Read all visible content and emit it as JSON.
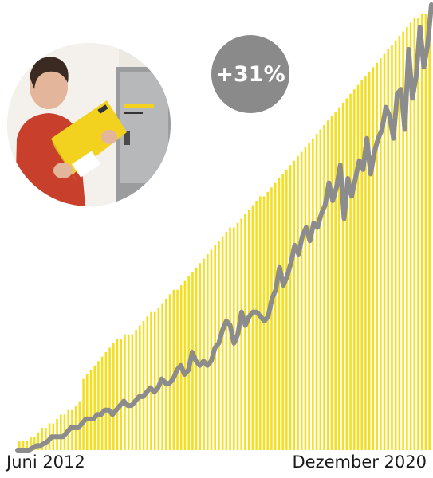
{
  "chart_data": {
    "type": "bar",
    "x_start": "Juni 2012",
    "x_end": "Dezember 2020",
    "ylim": [
      0,
      100
    ],
    "grid": false,
    "series": [
      {
        "kind": "bar",
        "color": "#f3df1f",
        "values": [
          2,
          2,
          2,
          3,
          3,
          4,
          5,
          5,
          6,
          6,
          7,
          8,
          8,
          9,
          9,
          10,
          11,
          16,
          17,
          18,
          19,
          20,
          21,
          22,
          23,
          24,
          25,
          25,
          26,
          26,
          26,
          27,
          28,
          29,
          30,
          31,
          31,
          32,
          33,
          34,
          35,
          36,
          36,
          37,
          38,
          39,
          40,
          41,
          42,
          43,
          44,
          45,
          46,
          47,
          48,
          49,
          50,
          50,
          51,
          52,
          53,
          54,
          55,
          56,
          57,
          57,
          58,
          59,
          60,
          61,
          62,
          63,
          64,
          65,
          66,
          67,
          68,
          69,
          70,
          71,
          72,
          73,
          74,
          75,
          76,
          77,
          78,
          79,
          80,
          81,
          82,
          83,
          84,
          85,
          86,
          87,
          88,
          89,
          90,
          91,
          92,
          93,
          94,
          95,
          96,
          97,
          97,
          98,
          98,
          99
        ]
      },
      {
        "kind": "line",
        "color": "#8c8c8c",
        "values": [
          0,
          0,
          0,
          0,
          0.5,
          1,
          1,
          1.5,
          2,
          3,
          3,
          3,
          3,
          4,
          5,
          5,
          5,
          6,
          7,
          7,
          7,
          8,
          8,
          9,
          9,
          8,
          9,
          10,
          11,
          10,
          10,
          11,
          12,
          12,
          13,
          14,
          13,
          14,
          16,
          15,
          15,
          16,
          18,
          19,
          17,
          18,
          22,
          20,
          19,
          20,
          19,
          20,
          23,
          24,
          27,
          29,
          28,
          24,
          26,
          31,
          28,
          30,
          31,
          31,
          30,
          29,
          30,
          34,
          36,
          41,
          37,
          39,
          42,
          46,
          44,
          48,
          50,
          47,
          51,
          50,
          53,
          55,
          60,
          56,
          59,
          64,
          52,
          61,
          57,
          61,
          65,
          63,
          70,
          62,
          67,
          70,
          72,
          77,
          75,
          70,
          80,
          81,
          72,
          90,
          79,
          84,
          95,
          86,
          91,
          100
        ]
      }
    ],
    "annotation": "+31%"
  }
}
